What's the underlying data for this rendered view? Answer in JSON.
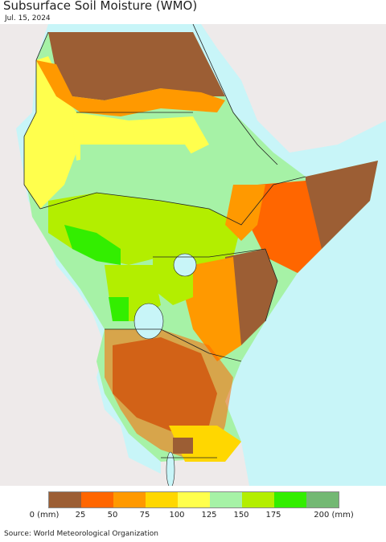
{
  "title": "Subsurface Soil Moisture (WMO)",
  "date": "Jul. 15, 2024",
  "source": "Source: World Meteorological Organization",
  "legend": {
    "colors": [
      "#9c5e34",
      "#ff6600",
      "#ff9900",
      "#ffd700",
      "#ffff4d",
      "#a6f2a6",
      "#b3ee00",
      "#33ee00",
      "#73b873"
    ],
    "labels": [
      "0 (mm)",
      "25",
      "50",
      "75",
      "100",
      "125",
      "150",
      "175",
      "200 (mm)"
    ]
  },
  "colors": {
    "ocean": "#c8f5f8",
    "land_outside": "#eeeaea",
    "lake": "#c8f5f8",
    "border": "#222222"
  }
}
